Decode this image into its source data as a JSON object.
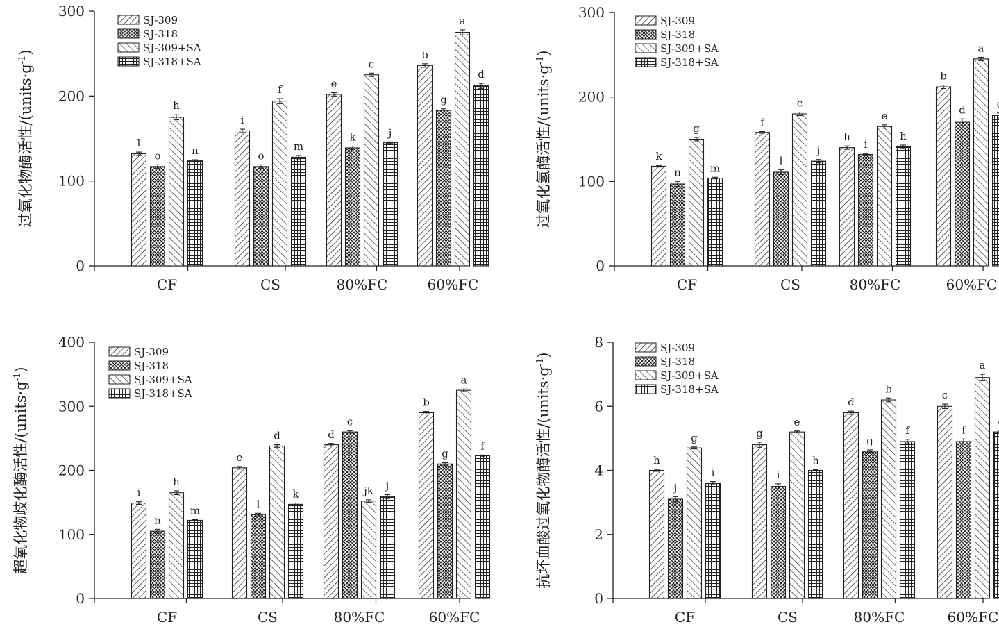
{
  "chart_data": [
    {
      "type": "bar",
      "ylabel_main": "过氧化物酶活性/(",
      "ylabel_unit": "units·g",
      "ylabel_sup": "-1",
      "ylabel_close": ")",
      "categories": [
        "CF",
        "CS",
        "80%FC",
        "60%FC"
      ],
      "ylim": [
        0,
        300
      ],
      "yticks": [
        0,
        100,
        200,
        300
      ],
      "series": [
        {
          "name": "SJ-309",
          "pattern": "diag-right",
          "values": [
            132,
            159,
            202,
            236
          ],
          "errors": [
            2,
            2,
            2,
            2
          ],
          "labels": [
            "l",
            "i",
            "e",
            "b"
          ]
        },
        {
          "name": "SJ-318",
          "pattern": "crosshatch",
          "values": [
            117,
            117,
            139,
            183
          ],
          "errors": [
            2,
            2,
            2,
            2
          ],
          "labels": [
            "o",
            "o",
            "k",
            "g"
          ]
        },
        {
          "name": "SJ-309+SA",
          "pattern": "diag-left",
          "values": [
            175,
            194,
            225,
            275
          ],
          "errors": [
            3,
            3,
            2,
            3
          ],
          "labels": [
            "h",
            "f",
            "c",
            "a"
          ]
        },
        {
          "name": "SJ-318+SA",
          "pattern": "grid",
          "values": [
            124,
            128,
            145,
            212
          ],
          "errors": [
            1,
            2,
            1,
            3
          ],
          "labels": [
            "n",
            "m",
            "j",
            "d"
          ]
        }
      ]
    },
    {
      "type": "bar",
      "ylabel_main": "过氧化氢酶活性/(",
      "ylabel_unit": "units·g",
      "ylabel_sup": "-1",
      "ylabel_close": ")",
      "categories": [
        "CF",
        "CS",
        "80%FC",
        "60%FC"
      ],
      "ylim": [
        0,
        300
      ],
      "yticks": [
        0,
        100,
        200,
        300
      ],
      "series": [
        {
          "name": "SJ-309",
          "pattern": "diag-right",
          "values": [
            118,
            158,
            140,
            212
          ],
          "errors": [
            1,
            1,
            2,
            2
          ],
          "labels": [
            "k",
            "f",
            "h",
            "b"
          ]
        },
        {
          "name": "SJ-318",
          "pattern": "crosshatch",
          "values": [
            97,
            111,
            132,
            170
          ],
          "errors": [
            3,
            3,
            1,
            4
          ],
          "labels": [
            "n",
            "l",
            "i",
            "d"
          ]
        },
        {
          "name": "SJ-309+SA",
          "pattern": "diag-left",
          "values": [
            150,
            180,
            165,
            245
          ],
          "errors": [
            2,
            2,
            2,
            2
          ],
          "labels": [
            "g",
            "c",
            "e",
            "a"
          ]
        },
        {
          "name": "SJ-318+SA",
          "pattern": "grid",
          "values": [
            104,
            124,
            141,
            178
          ],
          "errors": [
            1,
            2,
            2,
            3
          ],
          "labels": [
            "m",
            "j",
            "h",
            "c"
          ]
        }
      ]
    },
    {
      "type": "bar",
      "ylabel_main": "超氧化物歧化酶活性/(",
      "ylabel_unit": "units·g",
      "ylabel_sup": "-1",
      "ylabel_close": ")",
      "categories": [
        "CF",
        "CS",
        "80%FC",
        "60%FC"
      ],
      "ylim": [
        0,
        400
      ],
      "yticks": [
        0,
        100,
        200,
        300,
        400
      ],
      "series": [
        {
          "name": "SJ-309",
          "pattern": "diag-right",
          "values": [
            149,
            204,
            240,
            290
          ],
          "errors": [
            2,
            2,
            2,
            2
          ],
          "labels": [
            "i",
            "e",
            "d",
            "b"
          ]
        },
        {
          "name": "SJ-318",
          "pattern": "crosshatch",
          "values": [
            105,
            131,
            260,
            210
          ],
          "errors": [
            3,
            2,
            2,
            2
          ],
          "labels": [
            "n",
            "l",
            "c",
            "g"
          ]
        },
        {
          "name": "SJ-309+SA",
          "pattern": "diag-left",
          "values": [
            165,
            238,
            152,
            325
          ],
          "errors": [
            3,
            2,
            2,
            2
          ],
          "labels": [
            "h",
            "d",
            "jk",
            "a"
          ]
        },
        {
          "name": "SJ-318+SA",
          "pattern": "grid",
          "values": [
            122,
            147,
            159,
            223
          ],
          "errors": [
            1,
            2,
            3,
            1
          ],
          "labels": [
            "m",
            "k",
            "j",
            "f"
          ]
        }
      ]
    },
    {
      "type": "bar",
      "ylabel_main": "抗坏血酸过氧化物酶活性/(",
      "ylabel_unit": "units·g",
      "ylabel_sup": "-1",
      "ylabel_close": ")",
      "categories": [
        "CF",
        "CS",
        "80%FC",
        "60%FC"
      ],
      "ylim": [
        0,
        8
      ],
      "yticks": [
        0,
        2,
        4,
        6,
        8
      ],
      "series": [
        {
          "name": "SJ-309",
          "pattern": "diag-right",
          "values": [
            4.0,
            4.8,
            5.8,
            6.0
          ],
          "errors": [
            0.03,
            0.08,
            0.05,
            0.07
          ],
          "labels": [
            "h",
            "g",
            "d",
            "c"
          ]
        },
        {
          "name": "SJ-318",
          "pattern": "crosshatch",
          "values": [
            3.1,
            3.5,
            4.6,
            4.9
          ],
          "errors": [
            0.08,
            0.08,
            0.04,
            0.08
          ],
          "labels": [
            "j",
            "i",
            "g",
            "f"
          ]
        },
        {
          "name": "SJ-309+SA",
          "pattern": "diag-left",
          "values": [
            4.7,
            5.2,
            6.2,
            6.9
          ],
          "errors": [
            0.03,
            0.03,
            0.06,
            0.1
          ],
          "labels": [
            "g",
            "e",
            "b",
            "a"
          ]
        },
        {
          "name": "SJ-318+SA",
          "pattern": "grid",
          "values": [
            3.6,
            4.0,
            4.9,
            5.2
          ],
          "errors": [
            0.05,
            0.02,
            0.07,
            0.03
          ],
          "labels": [
            "i",
            "h",
            "f",
            "e"
          ]
        }
      ]
    }
  ]
}
